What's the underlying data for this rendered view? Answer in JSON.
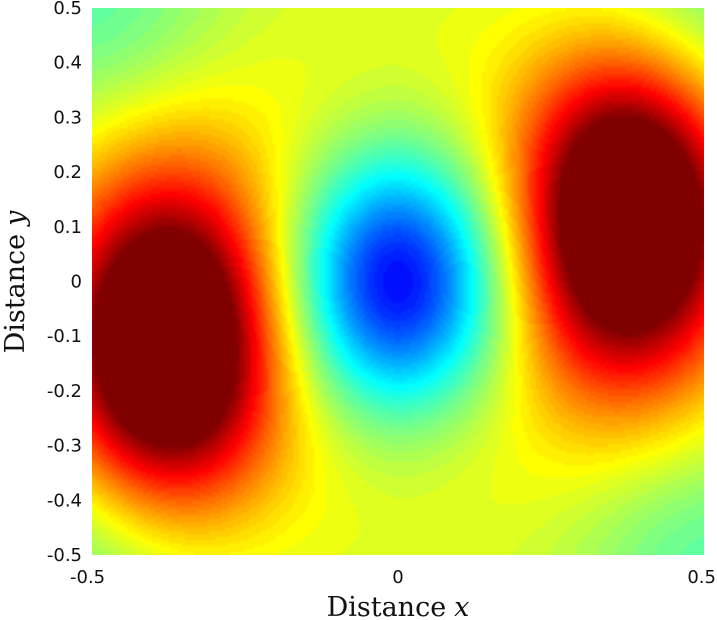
{
  "chart_data": {
    "type": "heatmap",
    "subtype": "filled-contour",
    "title": "",
    "xlabel": {
      "text": "Distance",
      "var": "x"
    },
    "ylabel": {
      "text": "Distance",
      "var": "y"
    },
    "xlim": [
      -0.5,
      0.5
    ],
    "ylim": [
      -0.5,
      0.5
    ],
    "x_ticks": [
      {
        "value": -0.5,
        "label": "-0.5"
      },
      {
        "value": 0,
        "label": "0"
      },
      {
        "value": 0.5,
        "label": "0.5"
      }
    ],
    "y_ticks": [
      {
        "value": 0.5,
        "label": "0.5"
      },
      {
        "value": 0.4,
        "label": "0.4"
      },
      {
        "value": 0.3,
        "label": "0.3"
      },
      {
        "value": 0.2,
        "label": "0.2"
      },
      {
        "value": 0.1,
        "label": "0.1"
      },
      {
        "value": 0,
        "label": "0"
      },
      {
        "value": -0.1,
        "label": "-0.1"
      },
      {
        "value": -0.2,
        "label": "-0.2"
      },
      {
        "value": -0.3,
        "label": "-0.3"
      },
      {
        "value": -0.4,
        "label": "-0.4"
      },
      {
        "value": -0.5,
        "label": "-0.5"
      }
    ],
    "colormap": "jet",
    "grid": false,
    "legend": "none",
    "field_features": [
      {
        "kind": "minimum",
        "x": 0.0,
        "y": 0.0,
        "level": 0.0
      },
      {
        "kind": "maximum",
        "x": -0.38,
        "y": -0.12,
        "level": 1.0
      },
      {
        "kind": "maximum",
        "x": 0.38,
        "y": 0.12,
        "level": 1.0
      },
      {
        "kind": "ring",
        "x": 0.0,
        "y": 0.0,
        "rx": 0.24,
        "ry": 0.31,
        "level": 0.6
      }
    ]
  }
}
